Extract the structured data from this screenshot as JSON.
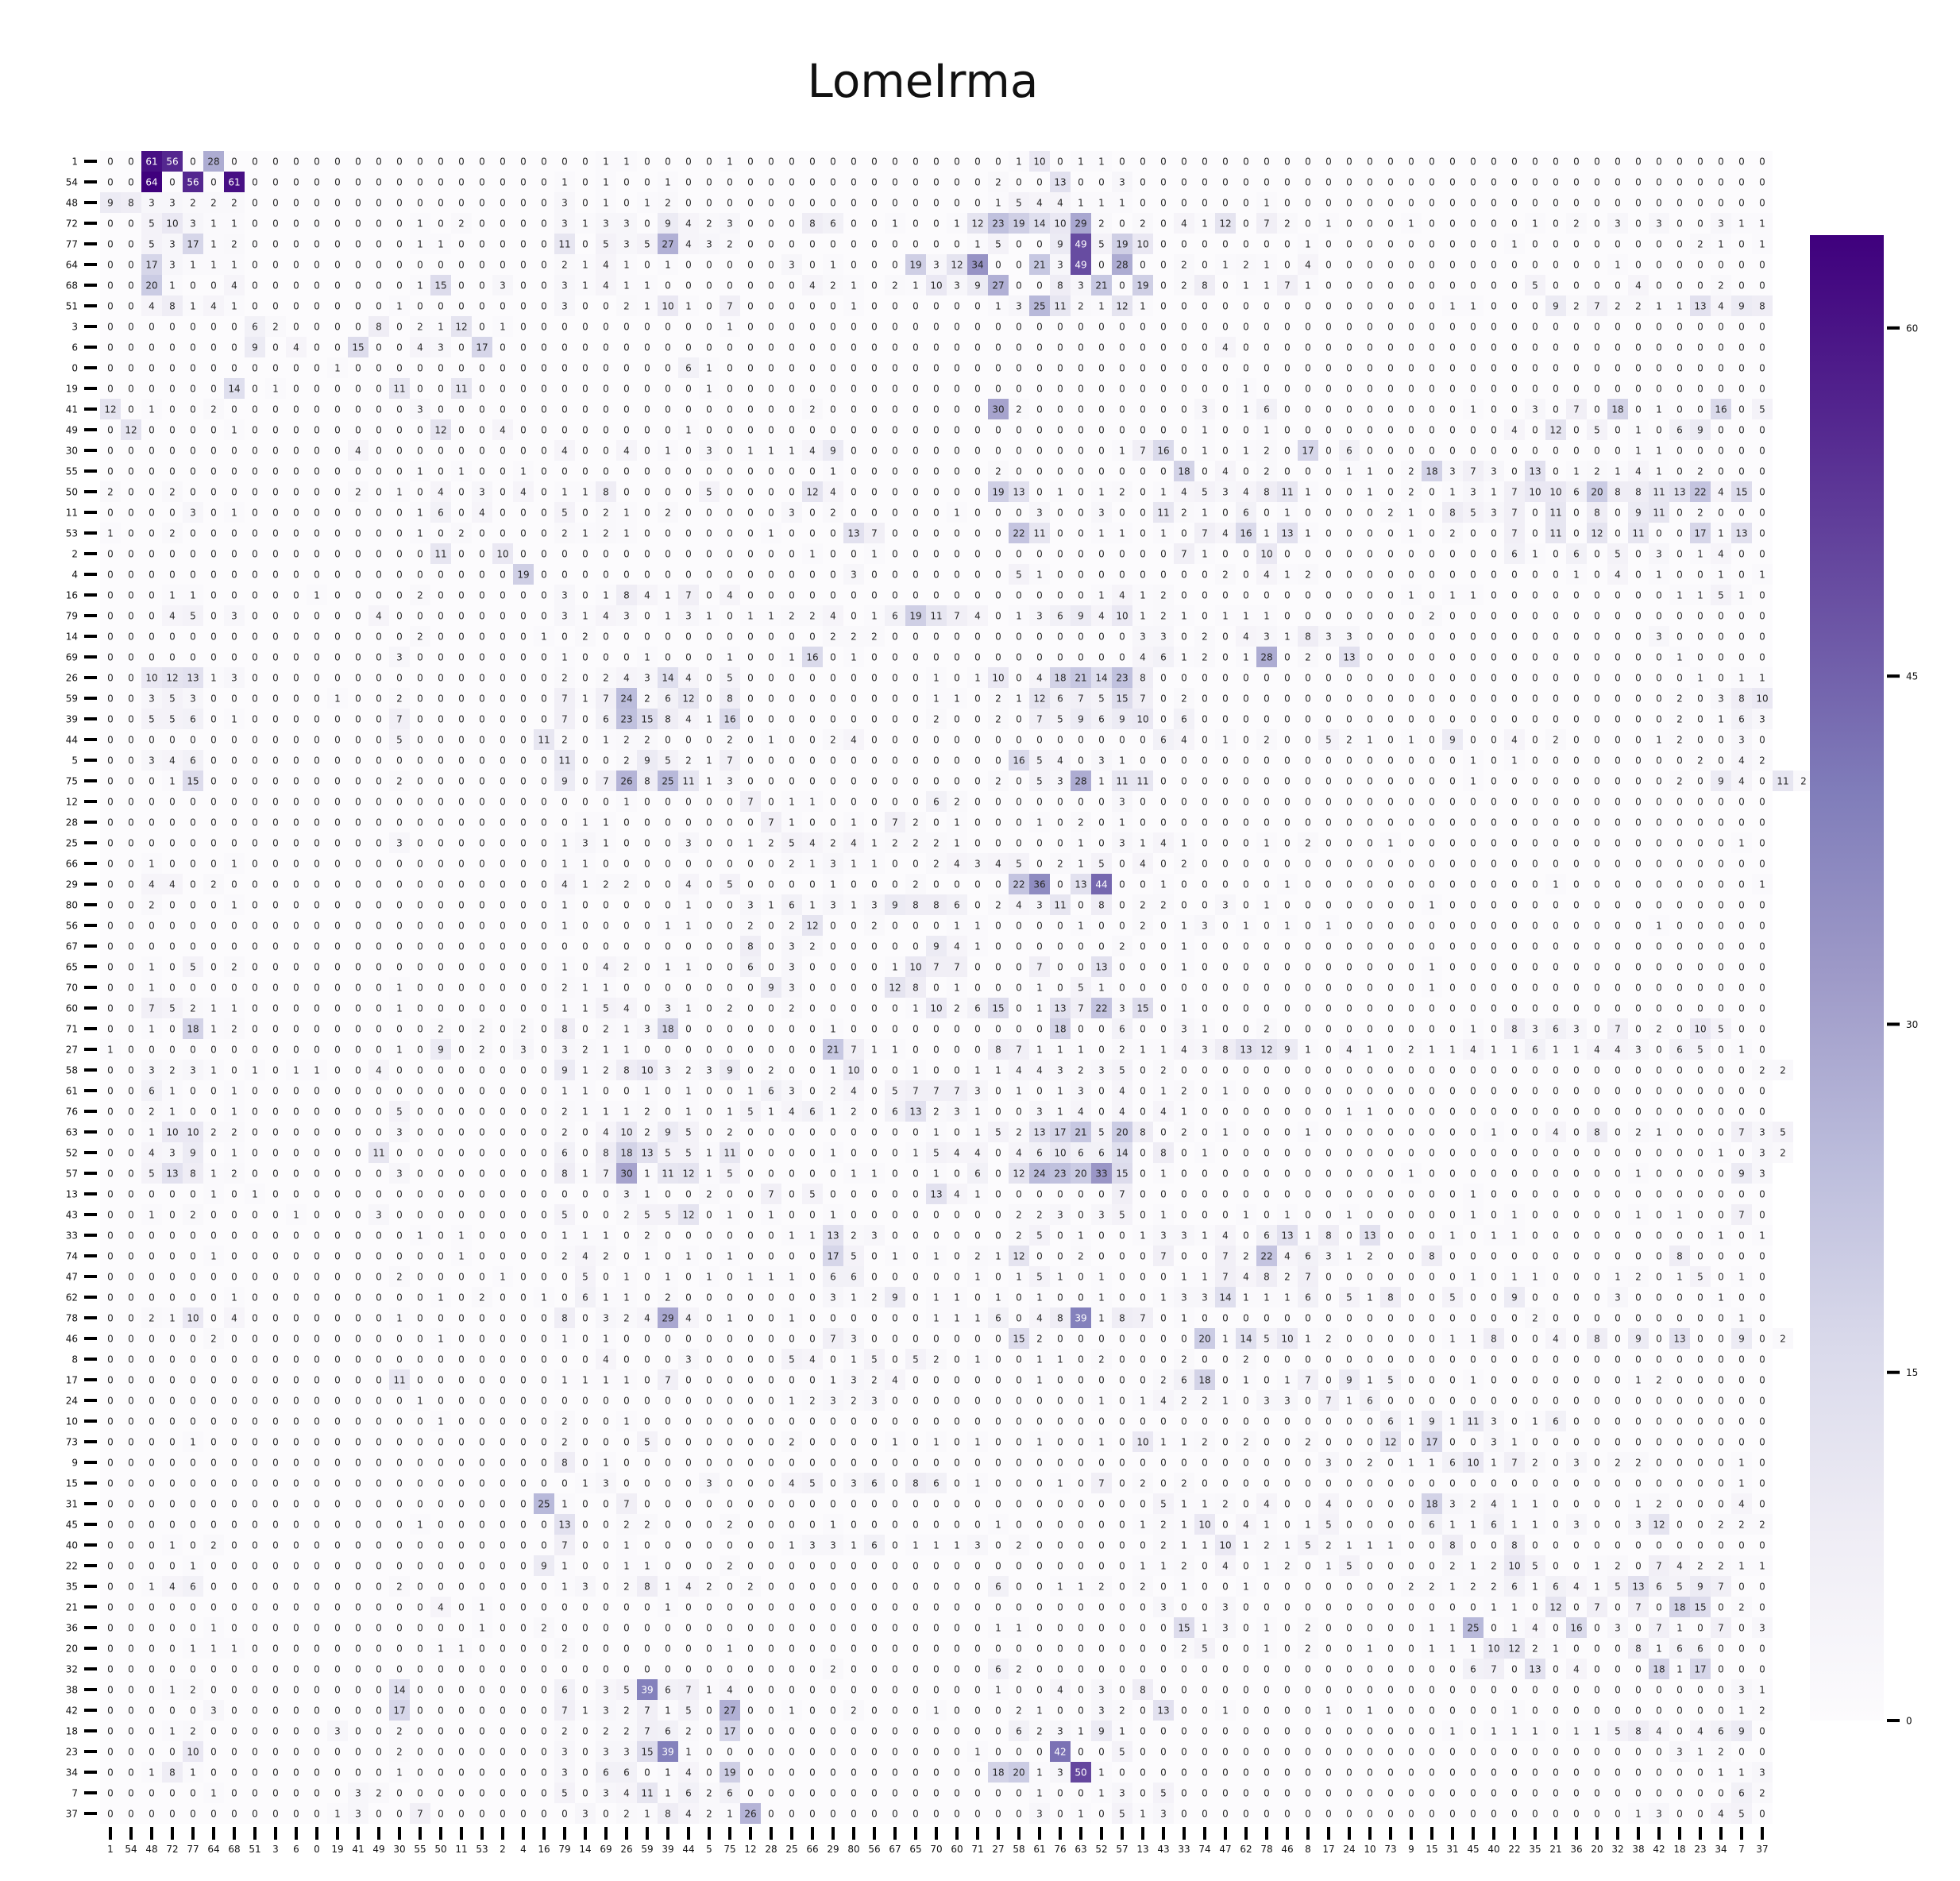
{
  "chart_data": {
    "type": "heatmap",
    "title": "LomeIrma",
    "xlabel": "",
    "ylabel": "",
    "labels": [
      "1",
      "54",
      "48",
      "72",
      "77",
      "64",
      "68",
      "51",
      "3",
      "6",
      "0",
      "19",
      "41",
      "49",
      "30",
      "55",
      "50",
      "11",
      "53",
      "2",
      "4",
      "16",
      "79",
      "14",
      "69",
      "26",
      "59",
      "39",
      "44",
      "5",
      "75",
      "12",
      "28",
      "25",
      "66",
      "29",
      "80",
      "56",
      "67",
      "65",
      "70",
      "60",
      "71",
      "27",
      "58",
      "61",
      "76",
      "63",
      "52",
      "57",
      "13",
      "43",
      "33",
      "74",
      "47",
      "62",
      "78",
      "46",
      "8",
      "17",
      "24",
      "10",
      "73",
      "9",
      "15",
      "31",
      "45",
      "40",
      "22",
      "35",
      "21",
      "36",
      "20",
      "32",
      "38",
      "42",
      "18",
      "23",
      "34",
      "7",
      "37"
    ],
    "colorbar": {
      "min": 0,
      "max": 64,
      "ticks": [
        0,
        15,
        30,
        45,
        60
      ]
    },
    "colormap": [
      "#fcfbfd",
      "#efedf5",
      "#dadaeb",
      "#bcbddc",
      "#9e9ac8",
      "#807dba",
      "#6a51a3",
      "#54278f",
      "#3f007d"
    ],
    "grid": false,
    "rows": [
      "0 0 61 56 0 28 0 0 0 0 0 0 0 0 0 0 0 0 0 0 0 0 0 0 1 1 0 0 0 0 1 0 0 0 0 0 0 0 0 0 0 0 0 0 1 10 0 1 1 0 0 0 0 0 0 0 0 0 0 0 0 0 0 0 0 0 0 0 0 0 0 0 0 0 0 0 0 0 0 0 0",
      "0 0 64 0 56 0 61 0 0 0 0 0 0 0 0 0 0 0 0 0 0 0 1 0 1 0 0 1 0 0 0 0 0 0 0 0 0 0 0 0 0 0 0 2 0 0 13 0 0 3 0 0 0 0 0 0 0 0 0 0 0 0 0 0 0 0 0 0 0 0 0 0 0 0 0 0 0 0 0 0 0",
      "9 8 3 3 2 2 2 0 0 0 0 0 0 0 0 0 0 0 0 0 0 0 3 0 1 0 1 2 0 0 0 0 0 0 0 0 0 0 0 0 0 0 0 1 5 4 4 1 1 1 0 0 0 0 0 0 1 0 0 0 0 0 0 0 0 0 0 0 0 0 0 0 0 0 0 0 0 0 0 0 0",
      "0 0 5 10 3 1 1 0 0 0 0 0 0 0 0 1 0 2 0 0 0 0 3 1 3 3 0 9 4 2 3 0 0 0 8 6 0 0 1 0 0 1 12 23 19 14 10 29 2 0 2 0 4 1 12 0 7 2 0 1 0 0 0 1 0 0 0 0 0 1 0 2 0 3 0 3 0 0 3 1 1",
      "0 0 5 3 17 1 2 0 0 0 0 0 0 0 0 1 1 0 0 0 0 0 11 0 5 3 5 27 4 3 2 0 0 0 0 0 0 0 0 0 0 0 1 5 0 0 9 49 5 19 10 0 0 0 0 0 0 0 1 0 0 0 0 0 0 0 0 0 1 0 0 0 0 0 0 0 0 2 1 0 1",
      "0 0 17 3 1 1 1 0 0 0 0 0 0 0 0 0 0 0 0 0 0 0 2 1 4 1 0 1 0 0 0 0 0 3 0 1 0 0 0 19 3 12 34 0 0 21 3 49 0 28 0 0 2 0 1 2 1 0 4 0 0 0 0 0 0 0 0 0 0 0 0 0 0 1 0 0 0 0 0 0 0",
      "0 0 20 1 0 0 4 0 0 0 0 0 0 0 0 1 15 0 0 3 0 0 3 1 4 1 1 0 0 0 0 0 0 0 4 2 1 0 2 1 10 3 9 27 0 0 8 3 21 0 19 0 2 8 0 1 1 7 1 0 0 0 0 0 0 0 0 0 0 5 0 0 0 0 4 0 0 0 2 0 0",
      "0 0 4 8 1 4 1 0 0 0 0 0 0 0 1 0 0 0 0 0 0 0 3 0 0 2 1 10 1 0 7 0 0 0 0 0 1 0 0 0 0 0 0 1 3 25 11 2 1 12 1 0 0 0 0 0 0 0 0 0 0 0 0 0 0 1 1 0 0 0 9 2 7 2 2 1 1 13 4 9 8",
      "0 0 0 0 0 0 0 6 2 0 0 0 0 8 0 2 1 12 0 1 0 0 0 0 0 0 0 0 0 0 1 0 0 0 0 0 0 0 0 0 0 0 0 0 0 0 0 0 0 0 0 0 0 0 0 0 0 0 0 0 0 0 0 0 0 0 0 0 0 0 0 0 0 0 0 0 0 0 0 0 0",
      "0 0 0 0 0 0 0 9 0 4 0 0 15 0 0 4 3 0 17 0 0 0 0 0 0 0 0 0 0 0 0 0 0 0 0 0 0 0 0 0 0 0 0 0 0 0 0 0 0 0 0 0 0 0 4 0 0 0 0 0 0 0 0 0 0 0 0 0 0 0 0 0 0 0 0 0 0 0 0 0 0",
      "0 0 0 0 0 0 0 0 0 0 0 1 0 0 0 0 0 0 0 0 0 0 0 0 0 0 0 0 6 1 0 0 0 0 0 0 0 0 0 0 0 0 0 0 0 0 0 0 0 0 0 0 0 0 0 0 0 0 0 0 0 0 0 0 0 0 0 0 0 0 0 0 0 0 0 0 0 0 0 0 0",
      "0 0 0 0 0 0 14 0 1 0 0 0 0 0 11 0 0 11 0 0 0 0 0 0 0 0 0 0 0 1 0 0 0 0 0 0 0 0 0 0 0 0 0 0 0 0 0 0 0 0 0 0 0 0 0 1 0 0 0 0 0 0 0 0 0 0 0 0 0 0 0 0 0 0 0 0 0 0 0 0 0",
      "12 0 1 0 0 2 0 0 0 0 0 0 0 0 0 3 0 0 0 0 0 0 0 0 0 0 0 0 0 0 0 0 0 0 2 0 0 0 0 0 0 0 0 30 2 0 0 0 0 0 0 0 0 3 0 1 6 0 0 0 0 0 0 0 0 0 1 0 0 3 0 7 0 18 0 1 0 0 16 0 5",
      "0 12 0 0 0 0 1 0 0 0 0 0 0 0 0 0 12 0 0 4 0 0 0 0 0 0 0 0 1 0 0 0 0 0 0 0 0 0 0 0 0 0 0 0 0 0 0 0 0 0 0 0 0 1 0 0 1 0 0 0 0 0 0 0 0 0 0 0 4 0 12 0 5 0 1 0 6 9 0 0 0",
      "0 0 0 0 0 0 0 0 0 0 0 0 4 0 0 0 0 0 0 0 0 0 4 0 0 4 0 1 0 3 0 1 1 1 4 9 0 0 0 0 0 0 0 0 0 0 0 0 0 1 7 16 0 1 0 1 2 0 17 0 6 0 0 0 0 0 0 0 0 0 0 0 0 0 1 1 0 0 0 0 0",
      "0 0 0 0 0 0 0 0 0 0 0 0 0 0 0 1 0 1 0 0 1 0 0 0 0 0 0 0 0 0 0 0 0 0 0 1 0 0 0 0 0 0 0 2 0 0 0 0 0 0 0 0 18 0 4 0 2 0 0 0 1 1 0 2 18 3 7 3 0 13 0 1 2 1 4 1 0 2 0 0 0",
      "2 0 0 2 0 0 0 0 0 0 0 0 2 0 1 0 4 0 3 0 4 0 1 1 8 0 0 0 0 5 0 0 0 0 12 4 0 0 0 0 0 0 0 19 13 0 1 0 1 2 0 1 4 5 3 4 8 11 1 0 0 1 0 2 0 1 3 1 7 10 10 6 20 8 8 11 13 22 4 15 0",
      "0 0 0 0 3 0 1 0 0 0 0 0 0 0 0 1 6 0 4 0 0 0 5 0 2 1 0 2 0 0 0 0 0 3 0 2 0 0 0 0 0 1 0 0 0 3 0 0 3 0 0 11 2 1 0 6 0 1 0 0 0 0 2 1 0 8 5 3 7 0 11 0 8 0 9 11 0 2 0 0 0",
      "1 0 0 2 0 0 0 0 0 0 0 0 0 0 0 1 0 2 0 0 0 0 2 1 2 1 0 0 0 0 0 0 1 0 0 0 13 7 0 0 0 0 0 0 22 11 0 0 1 1 0 1 0 7 4 16 1 13 1 0 0 0 0 1 0 2 0 0 7 0 11 0 12 0 11 0 0 17 1 13 0",
      "0 0 0 0 0 0 0 0 0 0 0 0 0 0 0 0 11 0 0 10 0 0 0 0 0 0 0 0 0 0 0 0 0 0 1 0 0 1 0 0 0 0 0 0 0 0 0 0 0 0 0 0 7 1 0 0 10 0 0 0 0 0 0 0 0 0 0 0 6 1 0 6 0 5 0 3 0 1 4 0 0",
      "0 0 0 0 0 0 0 0 0 0 0 0 0 0 0 0 0 0 0 0 19 0 0 0 0 0 0 0 0 0 0 0 0 0 0 0 3 0 0 0 0 0 0 0 5 1 0 0 0 0 0 0 0 0 2 0 4 1 2 0 0 0 0 0 0 0 0 0 0 0 0 1 0 4 0 1 0 0 1 0 1",
      "0 0 0 1 1 0 0 0 0 0 1 0 0 0 0 2 0 0 0 0 0 0 3 0 1 8 4 1 7 0 4 0 0 0 0 0 0 0 0 0 0 0 0 0 0 0 0 0 1 4 1 2 0 0 0 0 0 0 0 0 0 0 0 1 0 1 1 0 0 0 0 0 0 0 0 0 1 1 5 1 0",
      "0 0 0 4 5 0 3 0 0 0 0 0 0 4 0 0 0 0 0 0 0 0 3 1 4 3 0 1 3 1 0 1 1 2 2 4 0 1 6 19 11 7 4 0 1 3 6 9 4 10 1 2 1 0 1 1 1 0 0 0 0 0 0 0 2 0 0 0 0 0 0 0 0 0 0 0 0 0 0 0 0",
      "0 0 0 0 0 0 0 0 0 0 0 0 0 0 0 2 0 0 0 0 0 1 0 2 0 0 0 0 0 0 0 0 0 0 0 2 2 2 0 0 0 0 0 0 0 0 0 0 0 0 3 3 0 2 0 4 3 1 8 3 3 0 0 0 0 0 0 0 0 0 0 0 0 0 0 3 0 0 0 0 0",
      "0 0 0 0 0 0 0 0 0 0 0 0 0 0 3 0 0 0 0 0 0 0 1 0 0 0 1 0 0 0 1 0 0 1 16 0 1 0 0 0 0 0 0 0 0 0 0 0 0 0 4 6 1 2 0 1 28 0 2 0 13 0 0 0 0 0 0 0 0 0 0 0 0 0 0 0 1 0 0 0 0",
      "0 0 10 12 13 1 3 0 0 0 0 0 0 0 0 0 0 0 0 0 0 0 2 0 2 4 3 14 4 0 5 0 0 0 0 0 0 0 0 0 1 0 1 10 0 4 18 21 14 23 8 0 0 0 0 0 0 0 0 0 0 0 0 0 0 0 0 0 0 0 0 0 0 0 0 0 0 1 0 1 1",
      "0 0 3 5 3 0 0 0 0 0 0 1 0 0 2 0 0 0 0 0 0 0 7 1 7 24 2 6 12 0 8 0 0 0 0 0 0 0 0 0 1 1 0 2 1 12 6 7 5 15 7 0 2 0 0 0 0 0 0 0 0 0 0 0 0 0 0 0 0 0 0 0 0 0 0 0 2 0 3 8 10",
      "0 0 5 5 6 0 1 0 0 0 0 0 0 0 7 0 0 0 0 0 0 0 7 0 6 23 15 8 4 1 16 0 0 0 0 0 0 0 0 0 2 0 0 2 0 7 5 9 6 9 10 0 6 0 0 0 0 0 0 0 0 0 0 0 0 0 0 0 0 0 0 0 0 0 0 0 2 0 1 6 3",
      "0 0 0 0 0 0 0 0 0 0 0 0 0 0 5 0 0 0 0 0 0 11 2 0 1 2 2 0 0 0 2 0 1 0 0 2 4 0 0 0 0 0 0 0 0 0 0 0 0 0 0 6 4 0 1 0 2 0 0 5 2 1 0 1 0 9 0 0 4 0 2 0 0 0 0 1 2 0 0 3 0",
      "0 0 3 4 6 0 0 0 0 0 0 0 0 0 0 0 0 0 0 0 0 0 11 0 0 2 9 5 2 1 7 0 0 0 0 0 0 0 0 0 0 0 0 0 16 5 4 0 3 1 0 0 0 0 0 0 0 0 0 0 0 0 0 0 0 0 1 0 1 0 0 0 0 0 0 0 0 2 0 4 2",
      "0 0 0 1 15 0 0 0 0 0 0 0 0 0 2 0 0 0 0 0 0 0 9 0 7 26 8 25 11 1 3 0 0 0 0 0 0 0 0 0 0 0 0 2 0 5 3 28 1 11 11 0 0 0 0 0 0 0 0 0 0 0 0 0 0 0 1 0 0 0 0 0 0 0 0 0 2 0 9 4 0 11 2",
      "0 0 0 0 0 0 0 0 0 0 0 0 0 0 0 0 0 0 0 0 0 0 0 0 0 1 0 0 0 0 0 7 0 1 1 0 0 0 0 0 6 2 0 0 0 0 0 0 0 3 0 0 0 0 0 0 0 0 0 0 0 0 0 0 0 0 0 0 0 0 0 0 0 0 0 0 0 0 0 0 0",
      "0 0 0 0 0 0 0 0 0 0 0 0 0 0 0 0 0 0 0 0 0 0 0 1 1 0 0 0 0 0 0 0 7 1 0 0 1 0 7 2 0 1 0 0 0 1 0 2 0 1 0 0 0 0 0 0 0 0 0 0 0 0 0 0 0 0 0 0 0 0 0 0 0 0 0 0 0 0 0 0 0",
      "0 0 0 0 0 0 0 0 0 0 0 0 0 0 3 0 0 0 0 0 0 0 1 3 1 0 0 0 3 0 0 1 2 5 4 2 4 1 2 2 2 1 0 0 0 0 0 1 0 3 1 4 1 0 0 0 1 0 2 0 0 0 1 0 0 0 0 0 0 0 0 0 0 0 0 0 0 0 0 1 0",
      "0 0 1 0 0 0 1 0 0 0 0 0 0 0 0 0 0 0 0 0 0 0 1 1 0 0 0 0 0 0 0 0 0 2 1 3 1 1 0 0 2 4 3 4 5 0 2 1 5 0 4 0 2 0 0 0 0 0 0 0 0 0 0 0 0 0 0 0 0 0 0 0 0 0 0 0 0 0 0 0 0",
      "0 0 4 4 0 2 0 0 0 0 0 0 0 0 0 0 0 0 0 0 0 0 4 1 2 2 0 0 4 0 5 0 0 0 0 1 0 0 0 2 0 0 0 0 22 36 0 13 44 0 0 1 0 0 0 0 0 1 0 0 0 0 0 0 0 0 0 0 0 0 1 0 0 0 0 0 0 0 0 0 1",
      "0 0 2 0 0 0 1 0 0 0 0 0 0 0 0 0 0 0 0 0 0 0 1 0 0 0 0 0 1 0 0 3 1 6 1 3 1 3 9 8 8 6 0 2 4 3 11 0 8 0 2 2 0 0 3 0 1 0 0 0 0 0 0 0 1 0 0 0 0 0 0 0 0 0 0 0 0 0 0 0 0",
      "0 0 0 0 0 0 0 0 0 0 0 0 0 0 0 0 0 0 0 0 0 0 1 0 0 0 0 1 1 0 0 2 0 2 12 0 0 2 0 0 0 1 1 0 0 0 0 1 0 0 2 0 1 3 0 1 0 1 0 1 0 0 0 0 0 0 0 0 0 0 0 0 0 0 0 1 0 0 0 0 0",
      "0 0 0 0 0 0 0 0 0 0 0 0 0 0 0 0 0 0 0 0 0 0 0 0 0 0 0 0 0 0 0 8 0 3 2 0 0 0 0 0 9 4 1 0 0 0 0 0 0 2 0 0 1 0 0 0 0 0 0 0 0 0 0 0 0 0 0 0 0 0 0 0 0 0 0 0 0 0 0 0 0",
      "0 0 1 0 5 0 2 0 0 0 0 0 0 0 0 0 0 0 0 0 0 0 1 0 4 2 0 1 1 0 0 6 0 3 0 0 0 0 1 10 7 7 0 0 0 7 0 0 13 0 0 0 1 0 0 0 0 0 0 0 0 0 0 0 1 0 0 0 0 0 0 0 0 0 0 0 0 0 0 0 0",
      "0 0 1 0 0 0 0 0 0 0 0 0 0 0 1 0 0 0 0 0 0 0 2 1 1 0 0 0 0 0 0 0 9 3 0 0 0 0 12 8 0 1 0 0 0 1 0 5 1 0 0 0 0 0 0 0 0 0 0 0 0 0 0 0 1 0 0 0 0 0 0 0 0 0 0 0 0 0 0 0 0",
      "0 0 7 5 2 1 1 0 0 0 0 0 0 0 1 0 0 0 0 0 0 0 1 1 5 4 0 3 1 0 2 0 0 2 0 0 0 0 0 1 10 2 6 15 0 1 13 7 22 3 15 0 1 0 0 0 0 0 0 0 0 0 0 0 0 0 0 0 0 0 0 0 0 0 0 0 0 0 0 0 0",
      "0 0 1 0 18 1 2 0 0 0 0 0 0 0 0 0 2 0 2 0 2 0 8 0 2 1 3 18 0 0 0 0 0 0 0 1 0 0 0 0 0 0 0 0 0 0 18 0 0 6 0 0 3 1 0 0 2 0 0 0 0 0 0 0 0 0 1 0 8 3 6 3 0 7 0 2 0 10 5 0 0",
      "1 0 0 0 0 0 0 0 0 0 0 0 0 0 1 0 9 0 2 0 3 0 3 2 1 1 0 0 0 0 0 0 0 0 0 21 7 1 1 0 0 0 0 8 7 1 1 1 0 2 1 1 4 3 8 13 12 9 1 0 4 1 0 2 1 1 4 1 1 6 1 1 4 4 3 0 6 5 0 1 0",
      "0 0 3 2 3 1 0 1 0 1 1 0 0 4 0 0 0 0 0 0 0 0 9 1 2 8 10 3 2 3 9 0 2 0 0 1 10 0 0 1 0 0 1 1 4 4 3 2 3 5 0 2 0 0 0 0 0 0 0 0 0 0 0 0 0 0 0 0 0 0 0 0 0 0 0 0 0 0 0 0 2 2",
      "0 0 6 1 0 0 1 0 0 0 0 0 0 0 0 0 0 0 0 0 0 0 1 1 0 0 1 0 1 0 0 1 6 3 0 2 4 0 5 7 7 7 3 0 1 0 1 3 0 4 0 1 2 0 1 0 0 0 0 0 0 0 0 0 0 0 0 0 0 0 0 0 0 0 0 0 0 0 0 0 0",
      "0 0 2 1 0 0 1 0 0 0 0 0 0 0 5 0 0 0 0 0 0 0 2 1 1 1 2 0 1 0 1 5 1 4 6 1 2 0 6 13 2 3 1 0 0 3 1 4 0 4 0 4 1 0 0 0 0 0 0 0 1 1 0 0 0 0 0 0 0 0 0 0 0 0 0 0 0 0 0 0 0",
      "0 0 1 10 10 2 2 0 0 0 0 0 0 0 3 0 0 0 0 0 0 0 2 0 4 10 2 9 5 0 2 0 0 0 0 0 0 0 0 0 1 0 1 5 2 13 17 21 5 20 8 0 2 0 1 0 0 0 1 0 0 0 0 0 0 0 0 1 0 0 4 0 8 0 2 1 0 0 0 7 3 5",
      "0 0 4 3 9 0 1 0 0 0 0 0 0 11 0 0 0 0 0 0 0 0 6 0 8 18 13 5 5 1 11 0 0 0 0 1 0 0 0 1 5 4 4 0 4 6 10 6 6 14 0 8 0 1 0 0 0 0 0 0 0 0 0 0 0 0 0 0 0 0 0 0 0 0 0 0 0 0 1 0 3 2",
      "0 0 5 13 8 1 2 0 0 0 0 0 0 0 3 0 0 0 0 0 0 0 8 1 7 30 1 11 12 1 5 0 0 0 0 0 1 1 0 0 1 0 6 0 12 24 23 20 33 15 0 1 0 0 0 0 0 0 0 0 0 0 0 1 0 0 0 0 0 0 0 0 0 0 1 0 0 0 0 9 3",
      "0 0 0 0 0 1 0 1 0 0 0 0 0 0 0 0 0 0 0 0 0 0 0 0 0 3 1 0 0 2 0 0 7 0 5 0 0 0 0 0 13 4 1 0 0 0 0 0 0 7 0 0 0 0 0 0 0 0 0 0 0 0 0 0 0 0 1 0 0 0 0 0 0 0 0 0 0 0 0 0 0",
      "0 0 1 0 2 0 0 0 0 1 0 0 0 3 0 0 0 0 0 0 0 0 5 0 0 2 5 5 12 0 1 0 1 0 0 1 0 0 0 0 0 0 0 0 2 2 3 0 3 5 0 1 0 0 0 1 0 1 0 0 1 0 0 0 0 0 1 0 1 0 0 0 0 0 1 0 1 0 0 7 0",
      "0 0 0 0 0 0 0 0 0 0 0 0 0 0 0 1 0 1 0 0 0 0 1 1 1 0 2 0 0 0 0 0 0 1 1 13 2 3 0 0 0 0 0 0 2 5 0 1 0 0 1 3 3 1 4 0 6 13 1 8 0 13 0 0 0 1 0 1 1 0 0 0 0 0 0 0 0 0 1 0 1",
      "0 0 0 0 0 1 0 0 0 0 0 0 0 0 0 0 0 1 0 0 0 0 2 4 2 0 1 0 1 0 1 0 0 0 0 17 5 0 1 0 1 0 2 1 12 0 0 2 0 0 0 7 0 0 7 2 22 4 6 3 1 2 0 0 8 0 0 0 0 0 0 0 0 0 0 0 8 0 0 0 0",
      "0 0 0 0 0 0 0 0 0 0 0 0 0 0 2 0 0 0 0 1 0 0 0 5 0 1 0 1 0 1 0 1 1 1 0 6 6 0 0 0 0 0 1 0 1 5 1 0 1 0 0 0 1 1 7 4 8 2 7 0 0 0 0 0 0 0 1 0 1 1 0 0 0 1 2 0 1 5 0 1 0",
      "0 0 0 0 0 0 1 0 0 0 0 0 0 0 0 0 1 0 2 0 0 1 0 6 1 1 0 2 0 0 0 0 0 0 0 3 1 2 9 0 1 1 0 1 0 1 0 0 1 0 0 1 3 3 14 1 1 1 6 0 5 1 8 0 0 5 0 0 9 0 0 0 0 3 0 0 0 0 1 0 0",
      "0 0 2 1 10 0 4 0 0 0 0 0 0 0 1 0 0 0 0 0 0 0 8 0 3 2 4 29 4 0 1 0 0 1 0 0 0 0 0 0 1 1 1 6 0 4 8 39 1 8 7 0 1 0 0 0 0 0 0 0 0 0 0 0 0 0 0 0 0 2 0 0 0 0 0 0 0 0 0 1 0",
      "0 0 0 0 0 2 0 0 0 0 0 0 0 0 0 0 1 0 0 0 0 0 1 0 1 0 0 0 0 0 0 0 0 0 0 7 3 0 0 0 0 0 0 0 15 2 0 0 0 0 0 0 0 20 1 14 5 10 1 2 0 0 0 0 0 1 1 8 0 0 4 0 8 0 9 0 13 0 0 9 0 2",
      "0 0 0 0 0 0 0 0 0 0 0 0 0 0 0 0 0 0 0 0 0 0 0 0 4 0 0 0 3 0 0 0 0 5 4 0 1 5 0 5 2 0 1 0 0 1 1 0 2 0 0 0 2 0 0 2 0 0 0 0 0 0 0 0 0 0 0 0 0 0 0 0 0 0 0 0 0 0 0 0 0",
      "0 0 0 0 0 0 0 0 0 0 0 0 0 0 11 0 0 0 0 0 0 0 1 1 1 1 0 7 0 0 0 0 0 0 0 1 3 2 4 0 0 0 0 0 0 1 0 0 0 0 0 2 6 18 0 1 0 1 7 0 9 1 5 0 0 0 1 0 0 0 0 0 0 0 1 2 0 0 0 0 0",
      "0 0 0 0 0 0 0 0 0 0 0 0 0 0 0 1 0 0 0 0 0 0 0 0 0 0 0 0 0 0 0 0 0 1 2 3 2 3 0 0 0 0 0 0 0 0 0 0 1 0 1 4 2 2 1 0 3 3 0 7 1 6 0 0 0 0 0 0 0 0 0 0 0 0 0 0 0 0 0 0 0",
      "0 0 0 0 0 0 0 0 0 0 0 0 0 0 0 0 1 0 0 0 0 0 2 0 0 1 0 0 0 0 0 0 0 0 0 0 0 0 0 0 0 0 0 0 0 0 0 0 0 0 0 0 0 0 0 0 0 0 0 0 0 0 6 1 9 1 11 3 0 1 6 0 0 0 0 0 0 0 0 0 0",
      "0 0 0 0 1 0 0 0 0 0 0 0 0 0 0 0 0 0 0 0 0 0 2 0 0 0 5 0 0 0 0 0 0 2 0 0 0 0 1 0 1 0 1 0 0 1 0 0 1 0 10 1 1 2 0 2 0 0 2 0 0 0 12 0 17 0 0 3 1 0 0 0 0 0 0 0 0 0 0 0 0",
      "0 0 0 0 0 0 0 0 0 0 0 0 0 0 0 0 0 0 0 0 0 0 8 0 1 0 0 0 0 0 0 0 0 0 0 0 0 0 0 0 0 0 0 0 0 0 0 0 0 0 0 0 0 0 0 0 0 0 0 3 0 2 0 1 1 6 10 1 7 2 0 3 0 2 2 0 0 0 0 1 0",
      "0 0 0 0 0 0 0 0 0 0 0 0 0 0 0 0 0 0 0 0 0 0 0 1 3 0 0 0 0 3 0 0 0 4 5 0 3 6 0 8 6 0 1 0 0 0 1 0 7 0 2 0 2 0 0 0 0 0 0 0 0 0 0 0 0 0 0 0 0 0 0 0 0 0 0 0 0 0 0 1 0",
      "0 0 0 0 0 0 0 0 0 0 0 0 0 0 0 0 0 0 0 0 0 25 1 0 0 7 0 0 0 0 0 0 0 0 0 0 0 0 0 0 0 0 0 0 0 0 0 0 0 0 0 5 1 1 2 0 4 0 0 4 0 0 0 0 18 3 2 4 1 1 0 0 0 0 1 2 0 0 0 4 0",
      "0 0 0 0 0 0 0 0 0 0 0 0 0 0 0 1 0 0 0 0 0 0 13 0 0 2 2 0 0 0 2 0 0 0 0 1 0 0 0 0 0 0 0 1 0 0 0 0 0 0 1 2 1 10 0 4 1 0 1 5 0 0 0 0 6 1 1 6 1 1 0 3 0 0 3 12 0 0 2 2 2",
      "0 0 0 1 0 2 0 0 0 0 0 0 0 0 0 0 0 0 0 0 0 0 7 0 0 1 0 0 0 0 0 0 0 1 3 3 1 6 0 1 1 1 3 0 2 0 0 0 0 0 0 2 1 1 10 1 2 1 5 2 1 1 1 0 0 8 0 0 8 0 0 0 0 0 0 0 0 0 0 0 0",
      "0 0 0 0 1 0 0 0 0 0 0 0 0 0 0 0 0 0 0 0 0 9 1 0 0 1 1 0 0 0 2 0 0 0 0 0 0 0 0 0 0 0 0 0 0 0 0 0 0 0 1 1 2 0 4 0 1 2 0 1 5 0 0 0 0 2 1 2 10 5 0 0 1 2 0 7 4 2 2 1 1",
      "0 0 1 4 6 0 0 0 0 0 0 0 0 0 2 0 0 0 0 0 0 0 1 3 0 2 8 1 4 2 0 2 0 0 0 0 0 0 0 0 0 0 0 6 0 0 1 1 2 0 2 0 1 0 0 1 0 0 0 0 0 0 0 2 2 1 2 2 6 1 6 4 1 5 13 6 5 9 7 0 0",
      "0 0 0 0 0 0 0 0 0 0 0 0 0 0 0 0 4 0 1 0 0 0 0 0 0 0 0 1 0 0 0 0 0 0 0 0 0 0 0 0 0 0 0 0 0 0 0 0 0 0 0 3 0 0 3 0 0 0 0 0 0 0 0 0 0 0 0 1 1 0 12 0 7 0 7 0 18 15 0 2 0",
      "0 0 0 0 0 1 0 0 0 0 0 0 0 0 0 0 0 0 1 0 0 2 0 0 0 0 0 0 0 0 0 0 0 0 0 0 0 0 0 0 0 0 0 1 1 0 0 0 0 0 0 0 15 1 3 0 1 0 2 0 0 0 0 0 1 1 25 0 1 4 0 16 0 3 0 7 1 0 7 0 3",
      "0 0 0 0 1 1 1 0 0 0 0 0 0 0 0 0 1 1 0 0 0 0 2 0 0 0 0 0 0 0 1 0 0 0 0 0 0 0 0 0 0 0 0 0 0 0 0 0 0 0 0 0 2 5 0 0 1 0 2 0 0 1 0 0 1 1 1 10 12 2 1 0 0 0 8 1 6 6 0 0 0",
      "0 0 0 0 0 0 0 0 0 0 0 0 0 0 0 0 0 0 0 0 0 0 0 0 0 0 0 0 0 0 0 0 0 0 0 2 0 0 0 0 0 0 0 6 2 0 0 0 0 0 0 0 0 0 0 0 0 0 0 0 0 0 0 0 0 0 6 7 0 13 0 4 0 0 0 18 1 17 0 0 0",
      "0 0 0 1 2 0 0 0 0 0 0 0 0 0 14 0 0 0 0 0 0 0 6 0 3 5 39 6 7 1 4 0 0 0 0 0 0 0 0 0 0 0 0 1 0 0 4 0 3 0 8 0 0 0 0 0 0 0 0 0 0 0 0 0 0 0 0 0 0 0 0 0 0 0 0 0 0 0 0 3 1",
      "0 0 0 0 0 3 0 0 0 0 0 0 0 0 17 0 0 0 0 0 0 0 7 1 3 2 7 1 5 0 27 0 0 1 0 0 2 0 0 0 1 0 0 0 2 1 0 0 3 2 0 13 0 0 1 0 0 0 0 1 0 1 0 0 0 0 0 0 1 0 0 0 0 0 0 0 0 0 0 1 2",
      "0 0 0 1 2 0 0 0 0 0 0 3 0 0 2 0 0 0 0 0 0 0 2 0 2 2 7 6 2 0 17 0 0 0 0 0 0 0 0 0 0 0 0 0 6 2 3 1 9 1 0 0 0 0 0 0 0 0 0 0 0 0 0 0 0 1 0 1 1 1 0 1 1 5 8 4 0 4 6 9 0",
      "0 0 0 0 10 0 0 0 0 0 0 0 0 0 2 0 0 0 0 0 0 0 3 0 3 3 15 39 1 0 0 0 0 0 0 0 0 0 0 0 0 0 1 0 0 0 42 0 0 5 0 0 0 0 0 0 0 0 0 0 0 0 0 0 0 0 0 0 0 0 0 0 0 0 0 0 3 1 2 0 0",
      "0 0 1 8 1 0 0 0 0 0 0 0 0 0 1 0 0 0 0 0 0 0 3 0 6 6 0 1 4 0 19 0 0 0 0 0 0 0 0 0 0 0 0 18 20 1 3 50 1 0 0 0 0 0 0 0 0 0 0 0 0 0 0 0 0 0 0 0 0 0 0 0 0 0 0 0 0 0 1 1 3",
      "0 0 0 0 0 1 0 0 0 0 0 0 3 2 0 0 0 0 0 0 0 0 5 0 3 4 11 1 6 2 6 0 0 0 0 0 0 0 0 0 0 0 0 0 0 1 0 0 1 3 0 5 0 0 0 0 0 0 0 0 0 0 0 0 0 0 0 0 0 0 0 0 0 0 0 0 0 0 0 6 2",
      "0 0 0 0 0 0 0 0 0 0 0 1 3 0 0 7 0 0 0 0 0 0 0 3 0 2 1 8 4 2 1 26 0 0 0 0 0 0 0 0 0 0 0 0 0 3 0 1 0 5 1 3 0 0 0 0 0 0 0 0 0 0 0 0 0 0 0 0 0 0 0 0 0 0 1 3 0 0 4 5 0"
    ]
  }
}
